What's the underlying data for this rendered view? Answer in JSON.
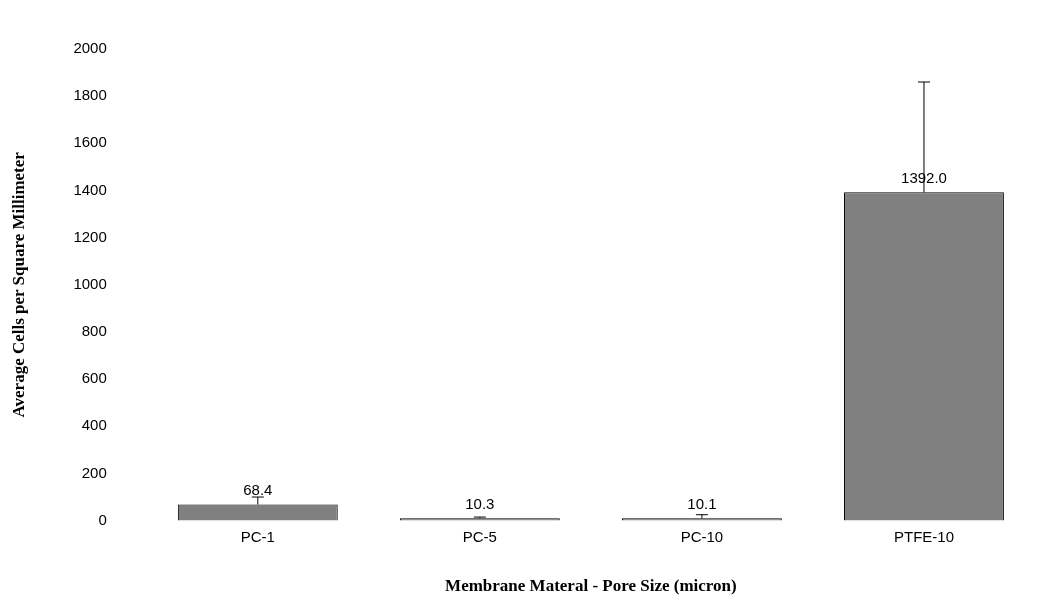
{
  "chart_data": {
    "type": "bar",
    "xlabel": "Membrane Materal - Pore Size (micron)",
    "ylabel": "Average Cells per Square Millimeter",
    "categories": [
      "PC-1",
      "PC-5",
      "PC-10",
      "PTFE-10"
    ],
    "values": [
      68.4,
      10.3,
      10.1,
      1392.0
    ],
    "value_labels": [
      "68.4",
      "10.3",
      "10.1",
      "1392.0"
    ],
    "errors": [
      [
        68.4,
        100
      ],
      [
        10.3,
        15
      ],
      [
        10.1,
        25
      ],
      [
        1392.0,
        1860
      ]
    ],
    "color": "#808080",
    "ylim": [
      0,
      2000
    ],
    "yticks": [
      0,
      200,
      400,
      600,
      800,
      1000,
      1200,
      1400,
      1600,
      1800,
      2000
    ],
    "grid": false,
    "legend": false
  }
}
